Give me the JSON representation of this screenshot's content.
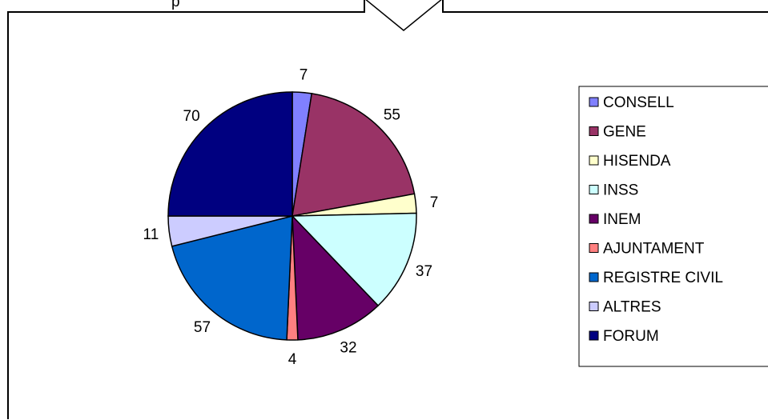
{
  "header_text": "p",
  "chart_data": {
    "type": "pie",
    "categories": [
      "CONSELL",
      "GENE",
      "HISENDA",
      "INSS",
      "INEM",
      "AJUNTAMENT",
      "REGISTRE CIVIL",
      "ALTRES",
      "FORUM"
    ],
    "values": [
      7,
      55,
      7,
      37,
      32,
      4,
      57,
      11,
      70
    ],
    "colors": [
      "#8080FF",
      "#993366",
      "#FFFFCC",
      "#CCFFFF",
      "#660066",
      "#FF8080",
      "#0066CC",
      "#CCCCFF",
      "#000080"
    ],
    "title": "",
    "legend_position": "right",
    "data_labels": true,
    "start_angle": "top",
    "direction": "clockwise"
  }
}
